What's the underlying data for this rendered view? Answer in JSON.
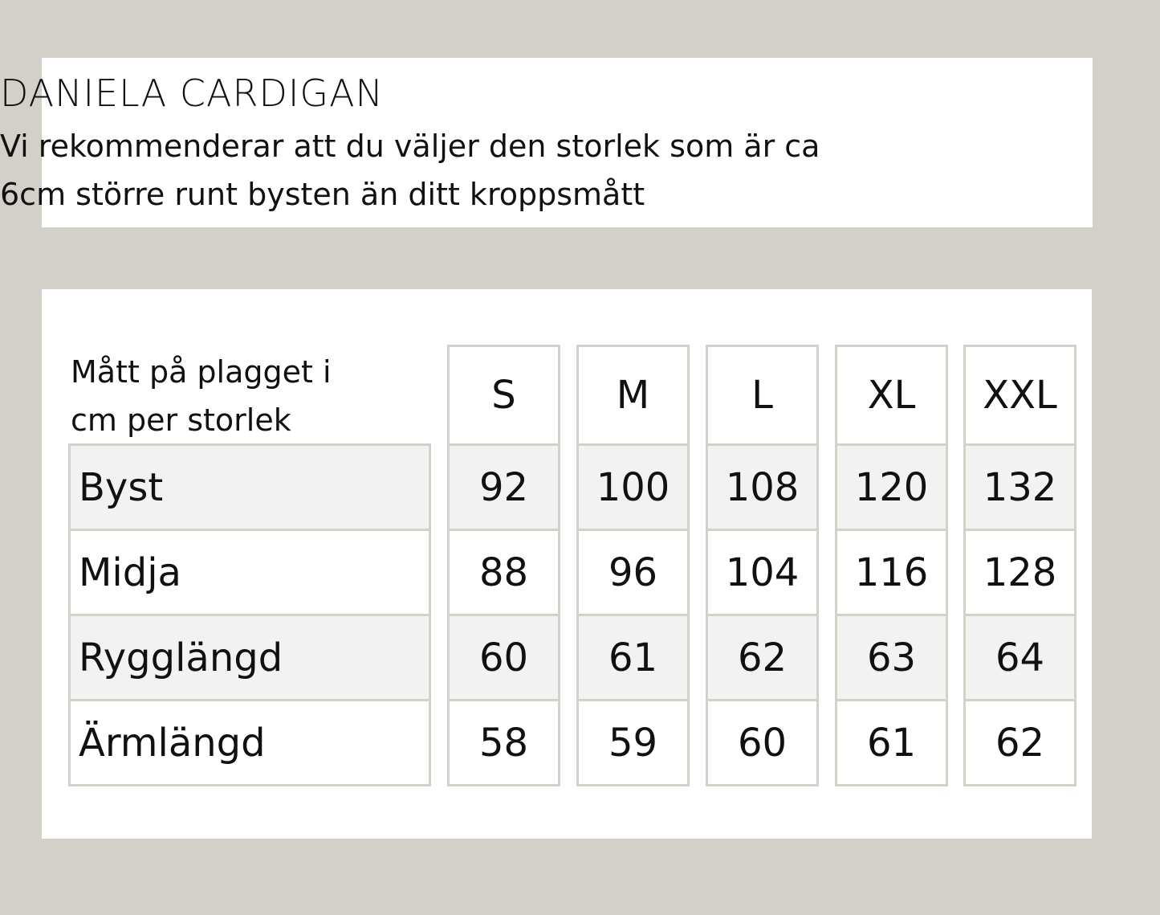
{
  "header": {
    "title": "DANIELA CARDIGAN",
    "subtitle_line1": "Vi rekommenderar att du väljer den storlek som är ca",
    "subtitle_line2": "6cm större runt bysten än ditt kroppsmått"
  },
  "table": {
    "description_line1": "Mått på plagget i",
    "description_line2": "cm per storlek",
    "sizes": [
      "S",
      "M",
      "L",
      "XL",
      "XXL"
    ],
    "rows": [
      {
        "label": "Byst",
        "values": [
          "92",
          "100",
          "108",
          "120",
          "132"
        ]
      },
      {
        "label": "Midja",
        "values": [
          "88",
          "96",
          "104",
          "116",
          "128"
        ]
      },
      {
        "label": "Rygglängd",
        "values": [
          "60",
          "61",
          "62",
          "63",
          "64"
        ]
      },
      {
        "label": "Ärmlängd",
        "values": [
          "58",
          "59",
          "60",
          "61",
          "62"
        ]
      }
    ]
  },
  "colors": {
    "background": "#d3d0c9",
    "border": "#d4d1ca",
    "shaded_row": "#f2f2f2"
  }
}
